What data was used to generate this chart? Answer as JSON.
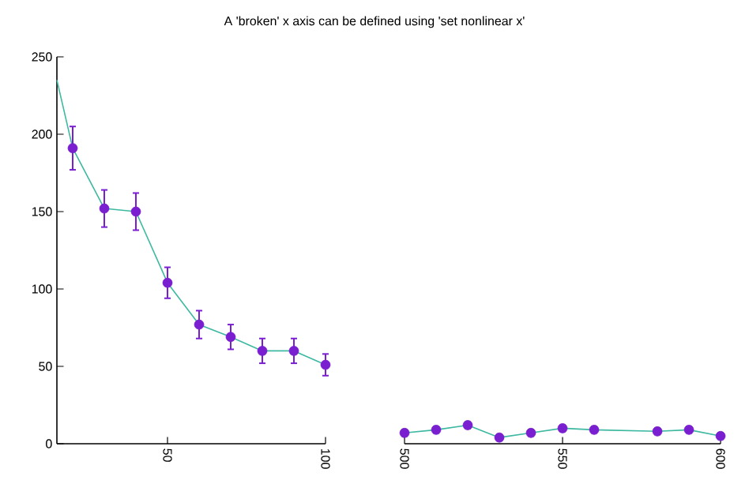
{
  "chart_data": [
    {
      "type": "line",
      "title": "A 'broken' x axis can be defined using 'set nonlinear x'",
      "xlim": [
        15,
        100
      ],
      "xticks": [
        50,
        100
      ],
      "ylim": [
        0,
        250
      ],
      "yticks": [
        0,
        50,
        100,
        150,
        200,
        250
      ],
      "series": [
        {
          "color": "#3cb9a0",
          "x": [
            15,
            20,
            30,
            40,
            50,
            60,
            70,
            80,
            90,
            100
          ],
          "values": [
            235,
            191,
            152,
            150,
            104,
            77,
            69,
            60,
            60,
            51
          ]
        },
        {
          "type": "scatter",
          "color": "#7a1fd0",
          "x": [
            20,
            30,
            40,
            50,
            60,
            70,
            80,
            90,
            100
          ],
          "values": [
            191,
            152,
            150,
            104,
            77,
            69,
            60,
            60,
            51
          ],
          "errors": [
            14,
            12,
            12,
            10,
            9,
            8,
            8,
            8,
            7
          ]
        }
      ]
    },
    {
      "type": "line",
      "xlim": [
        500,
        600
      ],
      "xticks": [
        500,
        550,
        600
      ],
      "ylim": [
        0,
        250
      ],
      "tick_labels": "x",
      "series": [
        {
          "color": "#3cb9a0",
          "x": [
            500,
            510,
            520,
            530,
            540,
            550,
            560,
            580,
            590,
            600
          ],
          "values": [
            7,
            9,
            12,
            4,
            7,
            10,
            9,
            8,
            9,
            5
          ]
        },
        {
          "type": "scatter",
          "color": "#7a1fd0",
          "x": [
            500,
            510,
            520,
            530,
            540,
            550,
            560,
            580,
            590,
            600
          ],
          "values": [
            7,
            9,
            12,
            4,
            7,
            10,
            9,
            8,
            9,
            5
          ],
          "errors": [
            2,
            2,
            2,
            2,
            2,
            2,
            2,
            2,
            2,
            2
          ]
        }
      ]
    }
  ]
}
